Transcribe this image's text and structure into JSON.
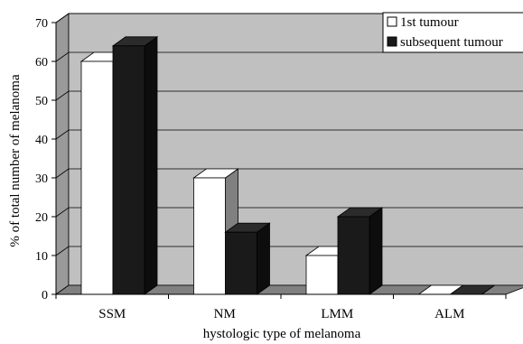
{
  "chart_data": {
    "type": "bar",
    "title": "",
    "xlabel": "hystologic type of melanoma",
    "ylabel": "% of total number of melanoma",
    "ylim": [
      0,
      70
    ],
    "yticks": [
      0,
      10,
      20,
      30,
      40,
      50,
      60,
      70
    ],
    "categories": [
      "SSM",
      "NM",
      "LMM",
      "ALM"
    ],
    "series": [
      {
        "name": "1st tumour",
        "values": [
          60,
          30,
          10,
          0
        ],
        "color": "#ffffff"
      },
      {
        "name": "subsequent tumour",
        "values": [
          64,
          16,
          20,
          0
        ],
        "color": "#1a1a1a"
      }
    ],
    "grid": true,
    "legend": "top-right",
    "style": "3d-column",
    "colors": {
      "wall": "#c0c0c0",
      "floor": "#808080",
      "side_wall": "#9a9a9a",
      "bar_side": "#808080",
      "gridline": "#000000"
    }
  }
}
